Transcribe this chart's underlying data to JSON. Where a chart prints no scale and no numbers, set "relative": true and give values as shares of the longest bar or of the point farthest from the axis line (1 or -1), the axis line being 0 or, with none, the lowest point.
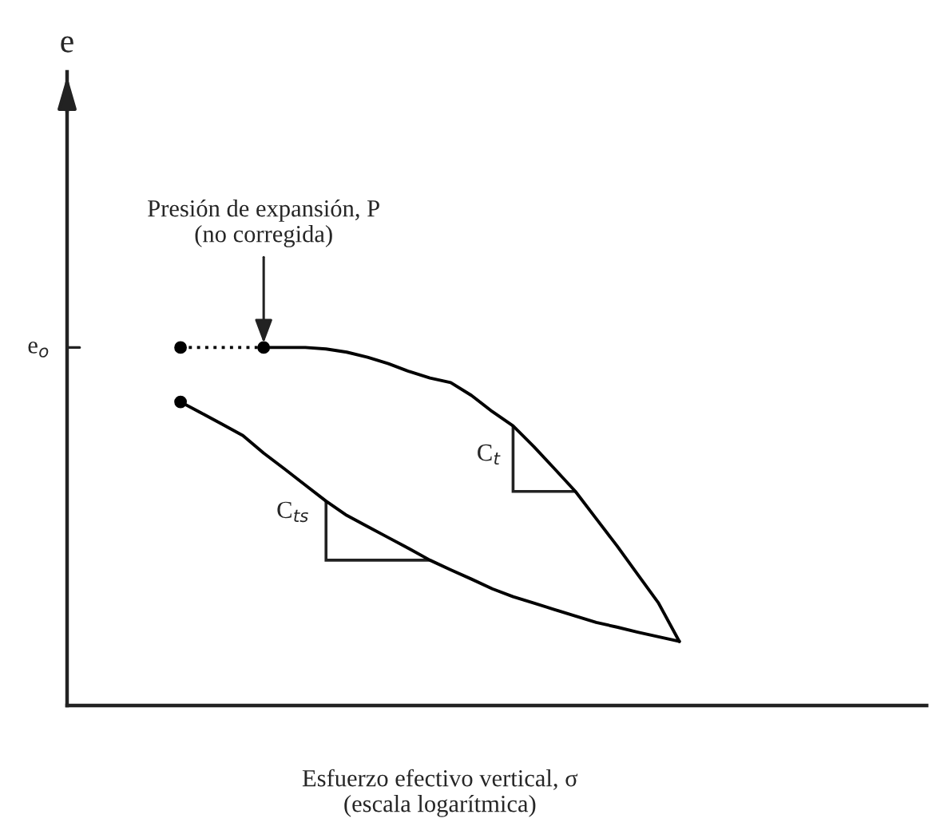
{
  "chart_data": {
    "type": "line",
    "relative": true,
    "xlabel": "Esfuerzo efectivo vertical, σ\n(escala logarítmica)",
    "categories": [
      null,
      null,
      null,
      null,
      null,
      null,
      null,
      null,
      null,
      null,
      null,
      null,
      null,
      null,
      null,
      null,
      null,
      null,
      null,
      null,
      null,
      null,
      null,
      null,
      null
    ],
    "series": [
      {
        "color": "#000000",
        "line_style": "dotted",
        "values": [
          1,
          1,
          1,
          1,
          1,
          null,
          null,
          null,
          null,
          null,
          null,
          null,
          null,
          null,
          null,
          null,
          null,
          null,
          null,
          null,
          null,
          null,
          null,
          null,
          null
        ]
      },
      {
        "color": "#000000",
        "line_style": "solid",
        "values": [
          null,
          null,
          null,
          null,
          1,
          1,
          1,
          0.996,
          0.987,
          0.973,
          0.955,
          0.933,
          0.915,
          0.902,
          0.866,
          0.821,
          0.781,
          0.723,
          0.661,
          0.598,
          0.522,
          0.446,
          0.366,
          0.286,
          0.179
        ]
      },
      {
        "color": "#000000",
        "line_style": "solid",
        "values": [
          0.848,
          0.817,
          0.786,
          0.754,
          0.705,
          0.661,
          0.616,
          0.571,
          0.531,
          0.5,
          0.469,
          0.438,
          0.406,
          0.379,
          0.353,
          0.326,
          0.304,
          0.286,
          0.268,
          0.25,
          0.232,
          0.219,
          0.205,
          0.192,
          0.179
        ]
      }
    ],
    "annotations": [
      "e",
      "e$_{o}$",
      "Presión de expansión, P\n(no corregida)",
      "C$_{t}$",
      "C$_{ts}$"
    ]
  }
}
